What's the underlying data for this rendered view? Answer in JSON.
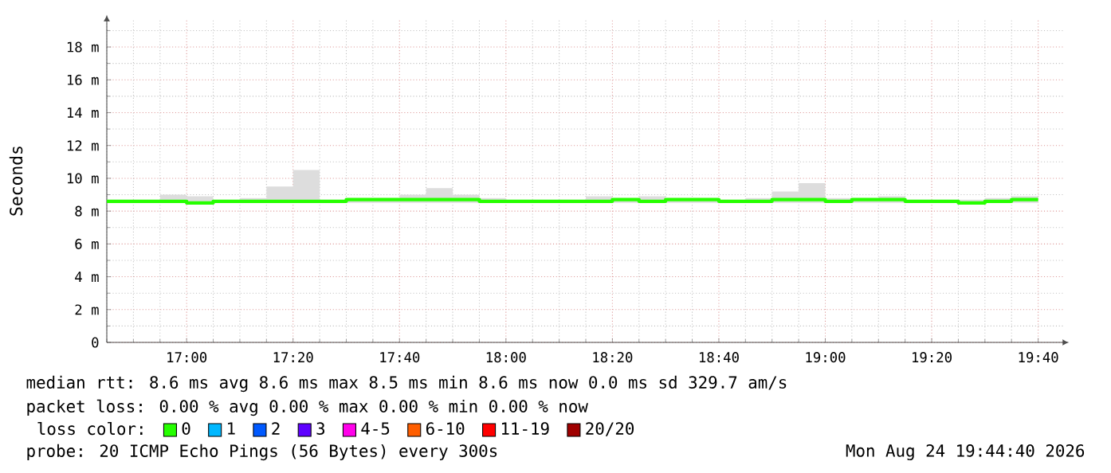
{
  "chart_data": {
    "type": "step",
    "ylabel": "Seconds",
    "legend_title": "loss color:",
    "legend": "bottom",
    "grid": true,
    "xlim": [
      16.75,
      19.75
    ],
    "ylim": [
      0,
      19.7
    ],
    "xticks": [
      {
        "value": 16.75,
        "label": null
      },
      {
        "value": 16.8333,
        "label": null
      },
      {
        "value": 16.9167,
        "label": null
      },
      {
        "value": 17,
        "label": "17:00"
      },
      {
        "value": 17.0833,
        "label": null
      },
      {
        "value": 17.1667,
        "label": null
      },
      {
        "value": 17.25,
        "label": null
      },
      {
        "value": 17.3333,
        "label": "17:20"
      },
      {
        "value": 17.4167,
        "label": null
      },
      {
        "value": 17.5,
        "label": null
      },
      {
        "value": 17.5833,
        "label": null
      },
      {
        "value": 17.6667,
        "label": "17:40"
      },
      {
        "value": 17.75,
        "label": null
      },
      {
        "value": 17.8333,
        "label": null
      },
      {
        "value": 17.9167,
        "label": null
      },
      {
        "value": 18,
        "label": "18:00"
      },
      {
        "value": 18.0833,
        "label": null
      },
      {
        "value": 18.1667,
        "label": null
      },
      {
        "value": 18.25,
        "label": null
      },
      {
        "value": 18.3333,
        "label": "18:20"
      },
      {
        "value": 18.4167,
        "label": null
      },
      {
        "value": 18.5,
        "label": null
      },
      {
        "value": 18.5833,
        "label": null
      },
      {
        "value": 18.6667,
        "label": "18:40"
      },
      {
        "value": 18.75,
        "label": null
      },
      {
        "value": 18.8333,
        "label": null
      },
      {
        "value": 18.9167,
        "label": null
      },
      {
        "value": 19,
        "label": "19:00"
      },
      {
        "value": 19.0833,
        "label": null
      },
      {
        "value": 19.1667,
        "label": null
      },
      {
        "value": 19.25,
        "label": null
      },
      {
        "value": 19.3333,
        "label": "19:20"
      },
      {
        "value": 19.4167,
        "label": null
      },
      {
        "value": 19.5,
        "label": null
      },
      {
        "value": 19.5833,
        "label": null
      },
      {
        "value": 19.6667,
        "label": "19:40"
      }
    ],
    "yticks": [
      0,
      {
        "value": 1,
        "label": null
      },
      {
        "value": 2,
        "label": "2 m"
      },
      {
        "value": 3,
        "label": null
      },
      {
        "value": 4,
        "label": "4 m"
      },
      {
        "value": 5,
        "label": null
      },
      {
        "value": 6,
        "label": "6 m"
      },
      {
        "value": 7,
        "label": null
      },
      {
        "value": 8,
        "label": "8 m"
      },
      {
        "value": 9,
        "label": null
      },
      {
        "value": 10,
        "label": "10 m"
      },
      {
        "value": 11,
        "label": null
      },
      {
        "value": 12,
        "label": "12 m"
      },
      {
        "value": 13,
        "label": null
      },
      {
        "value": 14,
        "label": "14 m"
      },
      {
        "value": 15,
        "label": null
      },
      {
        "value": 16,
        "label": "16 m"
      },
      {
        "value": 17,
        "label": null
      },
      {
        "value": 18,
        "label": "18 m"
      },
      {
        "value": 19,
        "label": null
      }
    ],
    "x": [
      16.75,
      16.8333,
      16.9167,
      17,
      17.0833,
      17.1667,
      17.25,
      17.3333,
      17.4167,
      17.5,
      17.5833,
      17.6667,
      17.75,
      17.8333,
      17.9167,
      18,
      18.0833,
      18.1667,
      18.25,
      18.3333,
      18.4167,
      18.5,
      18.5833,
      18.6667,
      18.75,
      18.8333,
      18.9167,
      19,
      19.0833,
      19.1667,
      19.25,
      19.3333,
      19.4167,
      19.5,
      19.5833,
      19.6667
    ],
    "series": [
      {
        "name": "0",
        "color": "#26ff00",
        "values": [
          8.6,
          8.6,
          8.6,
          8.5,
          8.6,
          8.6,
          8.6,
          8.6,
          8.6,
          8.7,
          8.7,
          8.7,
          8.7,
          8.7,
          8.6,
          8.6,
          8.6,
          8.6,
          8.6,
          8.7,
          8.6,
          8.7,
          8.7,
          8.6,
          8.6,
          8.7,
          8.7,
          8.6,
          8.7,
          8.7,
          8.6,
          8.6,
          8.5,
          8.6,
          8.7,
          8.7
        ],
        "lower": [
          8.5,
          8.5,
          8.5,
          8.4,
          8.5,
          8.5,
          8.5,
          8.5,
          8.5,
          8.5,
          8.5,
          8.5,
          8.5,
          8.5,
          8.5,
          8.5,
          8.5,
          8.5,
          8.5,
          8.5,
          8.5,
          8.5,
          8.5,
          8.5,
          8.5,
          8.5,
          8.5,
          8.5,
          8.5,
          8.5,
          8.5,
          8.5,
          8.4,
          8.5,
          8.5,
          8.5
        ],
        "upper": [
          8.7,
          8.7,
          9.0,
          8.9,
          8.7,
          8.8,
          9.5,
          10.5,
          8.7,
          8.8,
          8.8,
          9.0,
          9.4,
          9.0,
          8.8,
          8.7,
          8.7,
          8.7,
          8.9,
          8.8,
          8.9,
          8.8,
          8.8,
          8.7,
          8.8,
          9.2,
          9.7,
          8.8,
          8.8,
          8.9,
          8.7,
          8.7,
          8.7,
          8.8,
          8.9,
          8.9
        ]
      },
      {
        "name": "1",
        "color": "#00b8ff",
        "values": [
          null,
          null,
          null,
          null,
          null,
          null,
          null,
          null,
          null,
          null,
          null,
          null,
          null,
          null,
          null,
          null,
          null,
          null,
          null,
          null,
          null,
          null,
          null,
          null,
          null,
          null,
          null,
          null,
          null,
          null,
          null,
          null,
          null,
          null,
          null,
          null
        ]
      },
      {
        "name": "2",
        "color": "#0059ff",
        "values": [
          null,
          null,
          null,
          null,
          null,
          null,
          null,
          null,
          null,
          null,
          null,
          null,
          null,
          null,
          null,
          null,
          null,
          null,
          null,
          null,
          null,
          null,
          null,
          null,
          null,
          null,
          null,
          null,
          null,
          null,
          null,
          null,
          null,
          null,
          null,
          null
        ]
      },
      {
        "name": "3",
        "color": "#5e00ff",
        "values": [
          null,
          null,
          null,
          null,
          null,
          null,
          null,
          null,
          null,
          null,
          null,
          null,
          null,
          null,
          null,
          null,
          null,
          null,
          null,
          null,
          null,
          null,
          null,
          null,
          null,
          null,
          null,
          null,
          null,
          null,
          null,
          null,
          null,
          null,
          null,
          null
        ]
      },
      {
        "name": "4-5",
        "color": "#ff00ea",
        "values": [
          null,
          null,
          null,
          null,
          null,
          null,
          null,
          null,
          null,
          null,
          null,
          null,
          null,
          null,
          null,
          null,
          null,
          null,
          null,
          null,
          null,
          null,
          null,
          null,
          null,
          null,
          null,
          null,
          null,
          null,
          null,
          null,
          null,
          null,
          null,
          null
        ]
      },
      {
        "name": "6-10",
        "color": "#ff5e00",
        "values": [
          null,
          null,
          null,
          null,
          null,
          null,
          null,
          null,
          null,
          null,
          null,
          null,
          null,
          null,
          null,
          null,
          null,
          null,
          null,
          null,
          null,
          null,
          null,
          null,
          null,
          null,
          null,
          null,
          null,
          null,
          null,
          null,
          null,
          null,
          null,
          null
        ]
      },
      {
        "name": "11-19",
        "color": "#ff0000",
        "values": [
          null,
          null,
          null,
          null,
          null,
          null,
          null,
          null,
          null,
          null,
          null,
          null,
          null,
          null,
          null,
          null,
          null,
          null,
          null,
          null,
          null,
          null,
          null,
          null,
          null,
          null,
          null,
          null,
          null,
          null,
          null,
          null,
          null,
          null,
          null,
          null
        ]
      },
      {
        "name": "20/20",
        "color": "#a00000",
        "values": [
          null,
          null,
          null,
          null,
          null,
          null,
          null,
          null,
          null,
          null,
          null,
          null,
          null,
          null,
          null,
          null,
          null,
          null,
          null,
          null,
          null,
          null,
          null,
          null,
          null,
          null,
          null,
          null,
          null,
          null,
          null,
          null,
          null,
          null,
          null,
          null
        ]
      }
    ],
    "annotations": [
      "median rtt:  8.6 ms avg  8.6 ms max  8.5 ms min  8.6 ms now  0.0 ms sd  329.7   am/s",
      "packet loss: 0.00 % avg  0.00 % max  0.00 % min  0.00 % now",
      "probe:       20 ICMP Echo Pings (56 Bytes) every 300s",
      "Mon Aug 24 19:44:40 2026"
    ]
  }
}
